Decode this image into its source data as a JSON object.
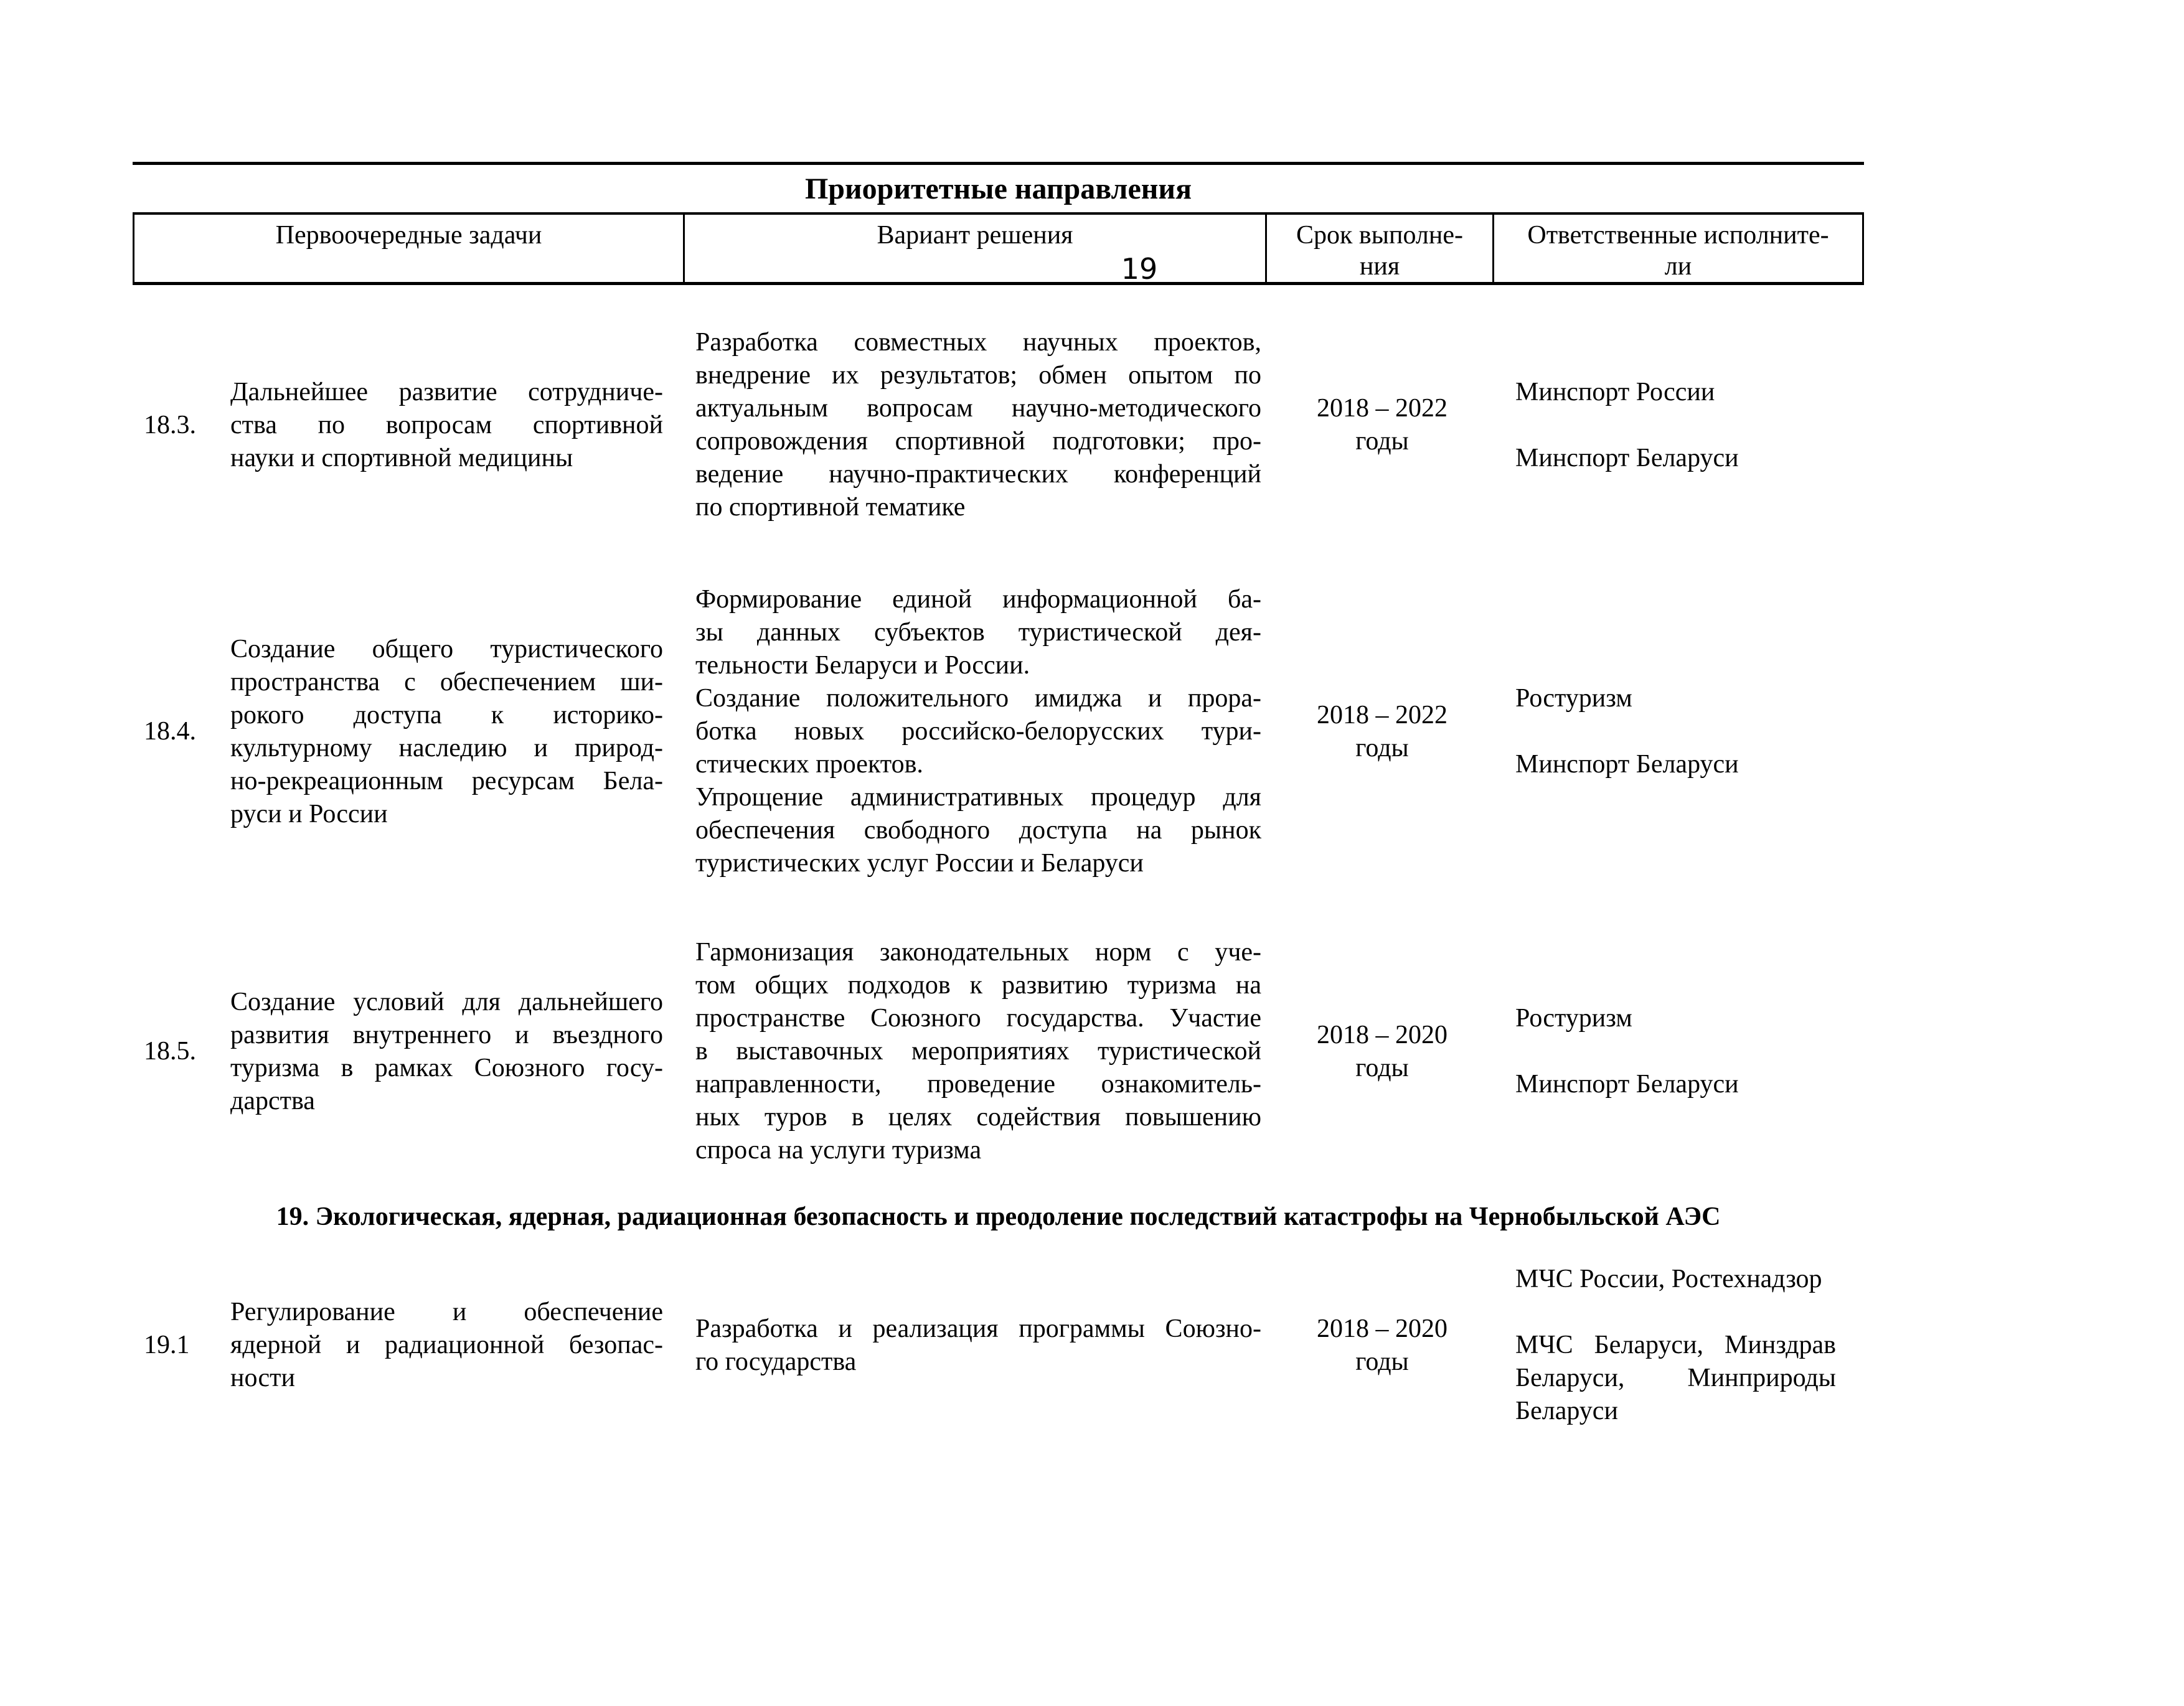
{
  "page": {
    "number": "19"
  },
  "table": {
    "title": "Приоритетные направления",
    "headers": {
      "tasks": "Первоочередные задачи",
      "solution": "Вариант решения",
      "term_lines": [
        "Срок выполне-",
        "ния"
      ],
      "executors_lines": [
        "Ответственные исполните-",
        "ли"
      ]
    },
    "rows": [
      {
        "num": "18.3.",
        "task": [
          [
            "Дальнейшее развитие сотрудниче-",
            "ства по вопросам спортивной",
            "науки и спортивной медицины"
          ]
        ],
        "solution": [
          [
            "Разработка совместных научных проектов,",
            "внедрение их результатов; обмен опытом по",
            "актуальным вопросам научно-методического",
            "сопровождения спортивной подготовки; про-",
            "ведение научно-практических конференций",
            "по спортивной тематике"
          ]
        ],
        "term": [
          "2018 – 2022",
          "годы"
        ],
        "executors": [
          [
            "Минспорт России"
          ],
          [
            "Минспорт Беларуси"
          ]
        ]
      },
      {
        "num": "18.4.",
        "task": [
          [
            "Создание общего туристического",
            "пространства с обеспечением ши-",
            "рокого доступа к историко-",
            "культурному наследию и природ-",
            "но-рекреационным ресурсам Бела-",
            "руси и России"
          ]
        ],
        "solution": [
          [
            "Формирование единой информационной ба-",
            "зы данных субъектов туристической дея-",
            "тельности Беларуси и России."
          ],
          [
            "Создание положительного имиджа и прора-",
            "ботка новых российско-белорусских тури-",
            "стических проектов."
          ],
          [
            "Упрощение административных процедур для",
            "обеспечения свободного доступа на рынок",
            "туристических услуг России и Беларуси"
          ]
        ],
        "term": [
          "2018 – 2022",
          "годы"
        ],
        "executors": [
          [
            "Ростуризм"
          ],
          [
            "Минспорт Беларуси"
          ]
        ]
      },
      {
        "num": "18.5.",
        "task": [
          [
            "Создание условий для дальнейшего",
            "развития внутреннего и въездного",
            "туризма в рамках Союзного госу-",
            "дарства"
          ]
        ],
        "solution": [
          [
            "Гармонизация законодательных норм с уче-",
            "том общих подходов к развитию туризма на",
            "пространстве Союзного государства. Участие",
            "в выставочных мероприятиях туристической",
            "направленности, проведение ознакомитель-",
            "ных туров в целях содействия повышению",
            "спроса на услуги туризма"
          ]
        ],
        "term": [
          "2018 – 2020",
          "годы"
        ],
        "executors": [
          [
            "Ростуризм"
          ],
          [
            "Минспорт Беларуси"
          ]
        ]
      }
    ],
    "section_header": "19. Экологическая, ядерная, радиационная безопасность и преодоление последствий катастрофы на Чернобыльской АЭС",
    "rows_after_section": [
      {
        "num": "19.1",
        "task": [
          [
            "Регулирование и обеспечение",
            "ядерной и радиационной безопас-",
            "ности"
          ]
        ],
        "solution": [
          [
            "Разработка и реализация программы Союзно-",
            "го государства"
          ]
        ],
        "term": [
          "2018 – 2020",
          "годы"
        ],
        "executors": [
          [
            "МЧС России, Ростехнадзор"
          ],
          [
            "МЧС Беларуси, Минздрав",
            "Беларуси, Минприроды",
            "Беларуси"
          ]
        ]
      }
    ]
  }
}
